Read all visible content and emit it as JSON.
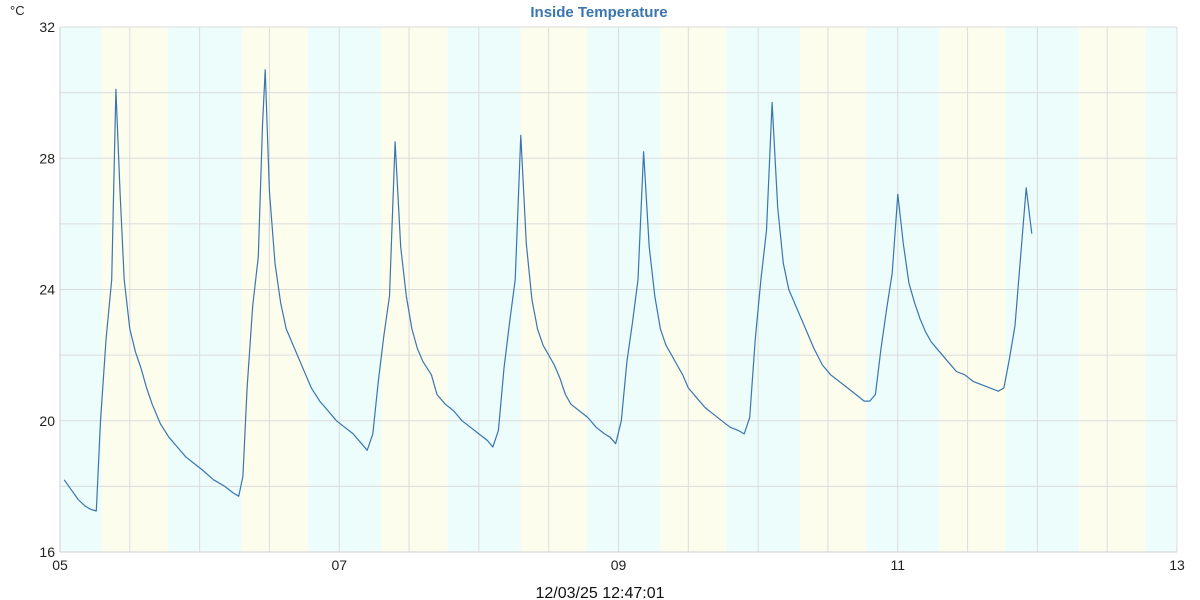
{
  "chart_data": {
    "type": "line",
    "title": "Inside Temperature",
    "y_unit": "°C",
    "timestamp": "12/03/25 12:47:01",
    "ylim": [
      16,
      32
    ],
    "y_ticks": [
      16,
      20,
      24,
      28,
      32
    ],
    "xlim": [
      5,
      13
    ],
    "x_ticks": [
      {
        "value": 5,
        "label": "05"
      },
      {
        "value": 7,
        "label": "07"
      },
      {
        "value": 9,
        "label": "09"
      },
      {
        "value": 11,
        "label": "11"
      },
      {
        "value": 13,
        "label": "13"
      }
    ],
    "grid": true,
    "bands": [
      {
        "start": 5.0,
        "end": 5.3,
        "kind": "night"
      },
      {
        "start": 5.3,
        "end": 5.775,
        "kind": "day"
      },
      {
        "start": 5.775,
        "end": 6.3,
        "kind": "night"
      },
      {
        "start": 6.3,
        "end": 6.775,
        "kind": "day"
      },
      {
        "start": 6.775,
        "end": 7.3,
        "kind": "night"
      },
      {
        "start": 7.3,
        "end": 7.775,
        "kind": "day"
      },
      {
        "start": 7.775,
        "end": 8.3,
        "kind": "night"
      },
      {
        "start": 8.3,
        "end": 8.775,
        "kind": "day"
      },
      {
        "start": 8.775,
        "end": 9.3,
        "kind": "night"
      },
      {
        "start": 9.3,
        "end": 9.775,
        "kind": "day"
      },
      {
        "start": 9.775,
        "end": 10.3,
        "kind": "night"
      },
      {
        "start": 10.3,
        "end": 10.775,
        "kind": "day"
      },
      {
        "start": 10.775,
        "end": 11.3,
        "kind": "night"
      },
      {
        "start": 11.3,
        "end": 11.775,
        "kind": "day"
      },
      {
        "start": 11.775,
        "end": 12.3,
        "kind": "night"
      },
      {
        "start": 12.3,
        "end": 12.775,
        "kind": "day"
      },
      {
        "start": 12.775,
        "end": 13.0,
        "kind": "night"
      }
    ],
    "colors": {
      "line": "#3a75b0",
      "title": "#3a75b0",
      "night_band": "#ecfdfc",
      "day_band": "#fdfdee",
      "grid": "#dcdcdc",
      "axis": "#cfcfcf"
    },
    "series": [
      {
        "points": [
          [
            5.03,
            18.2
          ],
          [
            5.08,
            17.9
          ],
          [
            5.13,
            17.6
          ],
          [
            5.18,
            17.4
          ],
          [
            5.22,
            17.3
          ],
          [
            5.26,
            17.25
          ],
          [
            5.29,
            20.0
          ],
          [
            5.33,
            22.5
          ],
          [
            5.37,
            24.3
          ],
          [
            5.4,
            30.1
          ],
          [
            5.43,
            27.0
          ],
          [
            5.46,
            24.3
          ],
          [
            5.5,
            22.8
          ],
          [
            5.54,
            22.1
          ],
          [
            5.58,
            21.6
          ],
          [
            5.62,
            21.0
          ],
          [
            5.66,
            20.5
          ],
          [
            5.72,
            19.9
          ],
          [
            5.78,
            19.5
          ],
          [
            5.84,
            19.2
          ],
          [
            5.9,
            18.9
          ],
          [
            5.96,
            18.7
          ],
          [
            6.02,
            18.5
          ],
          [
            6.1,
            18.2
          ],
          [
            6.18,
            18.0
          ],
          [
            6.24,
            17.8
          ],
          [
            6.28,
            17.7
          ],
          [
            6.31,
            18.3
          ],
          [
            6.34,
            21.0
          ],
          [
            6.38,
            23.5
          ],
          [
            6.42,
            25.0
          ],
          [
            6.45,
            29.0
          ],
          [
            6.47,
            30.7
          ],
          [
            6.5,
            27.0
          ],
          [
            6.54,
            24.8
          ],
          [
            6.58,
            23.6
          ],
          [
            6.62,
            22.8
          ],
          [
            6.68,
            22.2
          ],
          [
            6.74,
            21.6
          ],
          [
            6.8,
            21.0
          ],
          [
            6.86,
            20.6
          ],
          [
            6.92,
            20.3
          ],
          [
            6.98,
            20.0
          ],
          [
            7.04,
            19.8
          ],
          [
            7.1,
            19.6
          ],
          [
            7.16,
            19.3
          ],
          [
            7.2,
            19.1
          ],
          [
            7.24,
            19.6
          ],
          [
            7.28,
            21.2
          ],
          [
            7.32,
            22.6
          ],
          [
            7.36,
            23.8
          ],
          [
            7.4,
            28.5
          ],
          [
            7.44,
            25.3
          ],
          [
            7.48,
            23.8
          ],
          [
            7.52,
            22.8
          ],
          [
            7.56,
            22.2
          ],
          [
            7.6,
            21.8
          ],
          [
            7.66,
            21.4
          ],
          [
            7.7,
            20.8
          ],
          [
            7.76,
            20.5
          ],
          [
            7.82,
            20.3
          ],
          [
            7.88,
            20.0
          ],
          [
            7.94,
            19.8
          ],
          [
            8.0,
            19.6
          ],
          [
            8.06,
            19.4
          ],
          [
            8.1,
            19.2
          ],
          [
            8.14,
            19.7
          ],
          [
            8.18,
            21.6
          ],
          [
            8.22,
            23.0
          ],
          [
            8.26,
            24.3
          ],
          [
            8.3,
            28.7
          ],
          [
            8.34,
            25.4
          ],
          [
            8.38,
            23.7
          ],
          [
            8.42,
            22.8
          ],
          [
            8.46,
            22.3
          ],
          [
            8.5,
            22.0
          ],
          [
            8.54,
            21.7
          ],
          [
            8.58,
            21.3
          ],
          [
            8.62,
            20.8
          ],
          [
            8.66,
            20.5
          ],
          [
            8.72,
            20.3
          ],
          [
            8.78,
            20.1
          ],
          [
            8.84,
            19.8
          ],
          [
            8.9,
            19.6
          ],
          [
            8.94,
            19.5
          ],
          [
            8.98,
            19.3
          ],
          [
            9.02,
            20.0
          ],
          [
            9.06,
            21.8
          ],
          [
            9.1,
            23.0
          ],
          [
            9.14,
            24.3
          ],
          [
            9.18,
            28.2
          ],
          [
            9.22,
            25.3
          ],
          [
            9.26,
            23.8
          ],
          [
            9.3,
            22.8
          ],
          [
            9.34,
            22.3
          ],
          [
            9.38,
            22.0
          ],
          [
            9.42,
            21.7
          ],
          [
            9.46,
            21.4
          ],
          [
            9.5,
            21.0
          ],
          [
            9.56,
            20.7
          ],
          [
            9.62,
            20.4
          ],
          [
            9.68,
            20.2
          ],
          [
            9.74,
            20.0
          ],
          [
            9.8,
            19.8
          ],
          [
            9.86,
            19.7
          ],
          [
            9.9,
            19.6
          ],
          [
            9.94,
            20.1
          ],
          [
            9.98,
            22.5
          ],
          [
            10.02,
            24.3
          ],
          [
            10.06,
            25.8
          ],
          [
            10.1,
            29.7
          ],
          [
            10.14,
            26.5
          ],
          [
            10.18,
            24.8
          ],
          [
            10.22,
            24.0
          ],
          [
            10.28,
            23.4
          ],
          [
            10.34,
            22.8
          ],
          [
            10.4,
            22.2
          ],
          [
            10.46,
            21.7
          ],
          [
            10.52,
            21.4
          ],
          [
            10.58,
            21.2
          ],
          [
            10.64,
            21.0
          ],
          [
            10.7,
            20.8
          ],
          [
            10.76,
            20.6
          ],
          [
            10.8,
            20.6
          ],
          [
            10.84,
            20.8
          ],
          [
            10.88,
            22.2
          ],
          [
            10.92,
            23.4
          ],
          [
            10.96,
            24.5
          ],
          [
            11.0,
            26.9
          ],
          [
            11.04,
            25.4
          ],
          [
            11.08,
            24.2
          ],
          [
            11.12,
            23.6
          ],
          [
            11.16,
            23.1
          ],
          [
            11.2,
            22.7
          ],
          [
            11.24,
            22.4
          ],
          [
            11.3,
            22.1
          ],
          [
            11.36,
            21.8
          ],
          [
            11.42,
            21.5
          ],
          [
            11.48,
            21.4
          ],
          [
            11.54,
            21.2
          ],
          [
            11.6,
            21.1
          ],
          [
            11.66,
            21.0
          ],
          [
            11.72,
            20.9
          ],
          [
            11.76,
            21.0
          ],
          [
            11.8,
            21.9
          ],
          [
            11.84,
            22.9
          ],
          [
            11.88,
            25.0
          ],
          [
            11.92,
            27.1
          ],
          [
            11.96,
            25.7
          ]
        ]
      }
    ]
  }
}
